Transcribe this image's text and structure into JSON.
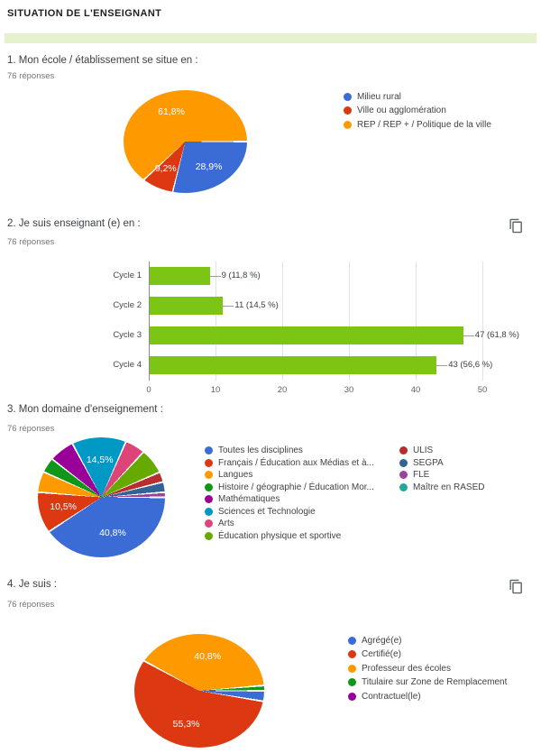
{
  "page_title": "SITUATION DE L'ENSEIGNANT",
  "divider_color": "#E5F2CD",
  "chart_data": [
    {
      "type": "pie",
      "title": "1. Mon école / établissement se situe en :",
      "subtitle": "76 réponses",
      "legend_position": "right",
      "slices": [
        {
          "label": "Milieu rural",
          "color": "#3B6CD6",
          "pct": 28.9,
          "pct_label": "28,9%"
        },
        {
          "label": "Ville ou agglomération",
          "color": "#DC3912",
          "pct": 9.2,
          "pct_label": "9,2%"
        },
        {
          "label": "REP / REP + / Politique de la ville",
          "color": "#FF9900",
          "pct": 61.8,
          "pct_label": "61,8%"
        }
      ]
    },
    {
      "type": "bar",
      "title": "2. Je suis enseignant (e) en :",
      "subtitle": "76 réponses",
      "has_copy_button": true,
      "categories": [
        "Cycle 1",
        "Cycle 2",
        "Cycle 3",
        "Cycle 4"
      ],
      "values": [
        9,
        11,
        47,
        43
      ],
      "value_labels": [
        "9 (11,8 %)",
        "11 (14,5 %)",
        "47 (61,8 %)",
        "43 (56,6 %)"
      ],
      "xlim": [
        0,
        50
      ],
      "ticks": [
        0,
        10,
        20,
        30,
        40,
        50
      ],
      "bar_color": "#7CC514",
      "grid": true
    },
    {
      "type": "pie",
      "title": "3. Mon domaine d'enseignement :",
      "subtitle": "76 réponses",
      "legend_position": "right",
      "legend_columns": 2,
      "slices": [
        {
          "label": "Toutes les disciplines",
          "color": "#3B6CD6",
          "pct": 40.8,
          "pct_label": "40,8%"
        },
        {
          "label": "Français / Éducation aux Médias et à...",
          "color": "#DC3912",
          "pct": 10.5,
          "pct_label": "10,5%"
        },
        {
          "label": "Langues",
          "color": "#FF9900",
          "pct": 5.3
        },
        {
          "label": "Histoire / géographie / Éducation Mor...",
          "color": "#109618",
          "pct": 3.9
        },
        {
          "label": "Mathématiques",
          "color": "#990099",
          "pct": 6.6
        },
        {
          "label": "Sciences et Technologie",
          "color": "#0099C6",
          "pct": 14.5,
          "pct_label": "14,5%"
        },
        {
          "label": "Arts",
          "color": "#DD4477",
          "pct": 5.3
        },
        {
          "label": "Éducation physique et sportive",
          "color": "#66AA00",
          "pct": 6.6
        },
        {
          "label": "ULIS",
          "color": "#B82E2E",
          "pct": 2.6
        },
        {
          "label": "SEGPA",
          "color": "#316395",
          "pct": 2.6
        },
        {
          "label": "FLE",
          "color": "#994499",
          "pct": 1.3
        },
        {
          "label": "Maître en RASED",
          "color": "#22AA99",
          "pct": 0
        }
      ]
    },
    {
      "type": "pie",
      "title": "4. Je suis :",
      "subtitle": "76 réponses",
      "has_copy_button": true,
      "legend_position": "right",
      "slices": [
        {
          "label": "Agrégé(e)",
          "color": "#3B6CD6",
          "pct": 2.6
        },
        {
          "label": "Certifié(e)",
          "color": "#DC3912",
          "pct": 55.3,
          "pct_label": "55,3%"
        },
        {
          "label": "Professeur des écoles",
          "color": "#FF9900",
          "pct": 40.8,
          "pct_label": "40,8%"
        },
        {
          "label": "Titulaire sur Zone de Remplacement",
          "color": "#109618",
          "pct": 1.3
        },
        {
          "label": "Contractuel(le)",
          "color": "#990099",
          "pct": 0
        }
      ]
    }
  ]
}
